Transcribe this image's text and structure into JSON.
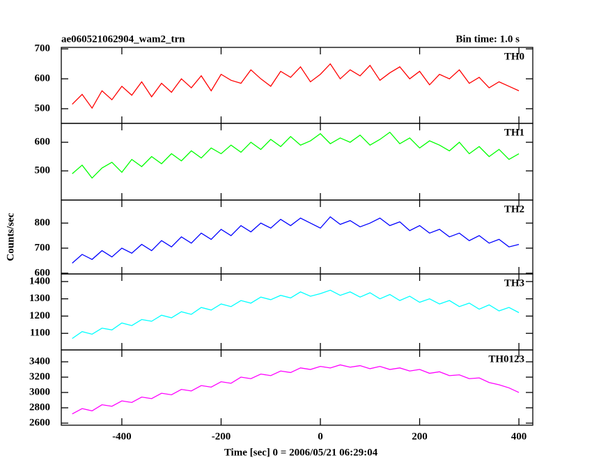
{
  "title": "ae060521062904_wam2_trn",
  "bin_time": "Bin time: 1.0 s",
  "ylabel": "Counts/sec",
  "xlabel": "Time [sec] 0 = 2006/05/21 06:29:04",
  "chart_data": [
    {
      "type": "line",
      "label": "TH0",
      "color": "#ff0000",
      "x": [
        -500,
        -480,
        -460,
        -440,
        -420,
        -400,
        -380,
        -360,
        -340,
        -320,
        -300,
        -280,
        -260,
        -240,
        -220,
        -200,
        -180,
        -160,
        -140,
        -120,
        -100,
        -80,
        -60,
        -40,
        -20,
        0,
        20,
        40,
        60,
        80,
        100,
        120,
        140,
        160,
        180,
        200,
        220,
        240,
        260,
        280,
        300,
        320,
        340,
        360,
        380,
        400
      ],
      "values": [
        515,
        548,
        502,
        560,
        530,
        575,
        545,
        590,
        540,
        585,
        555,
        600,
        570,
        610,
        560,
        615,
        595,
        585,
        630,
        600,
        575,
        625,
        605,
        640,
        590,
        615,
        650,
        600,
        630,
        610,
        645,
        595,
        620,
        640,
        600,
        625,
        580,
        615,
        600,
        630,
        585,
        605,
        570,
        590,
        575,
        560
      ],
      "xlim": [
        -522,
        428
      ],
      "xticks": [
        -400,
        -200,
        0,
        200,
        400
      ],
      "ylim": [
        451,
        705
      ],
      "yticks": [
        500,
        600,
        700
      ]
    },
    {
      "type": "line",
      "label": "TH1",
      "color": "#00ff00",
      "x": [
        -500,
        -480,
        -460,
        -440,
        -420,
        -400,
        -380,
        -360,
        -340,
        -320,
        -300,
        -280,
        -260,
        -240,
        -220,
        -200,
        -180,
        -160,
        -140,
        -120,
        -100,
        -80,
        -60,
        -40,
        -20,
        0,
        20,
        40,
        60,
        80,
        100,
        120,
        140,
        160,
        180,
        200,
        220,
        240,
        260,
        280,
        300,
        320,
        340,
        360,
        380,
        400
      ],
      "values": [
        490,
        520,
        475,
        510,
        530,
        495,
        540,
        515,
        550,
        525,
        560,
        535,
        570,
        545,
        580,
        560,
        590,
        565,
        600,
        575,
        610,
        585,
        620,
        590,
        605,
        630,
        595,
        615,
        600,
        625,
        590,
        610,
        635,
        595,
        615,
        580,
        605,
        590,
        570,
        600,
        560,
        585,
        550,
        575,
        540,
        560
      ],
      "xlim": [
        -522,
        428
      ],
      "xticks": [
        -400,
        -200,
        0,
        200,
        400
      ],
      "ylim": [
        398,
        666
      ],
      "yticks": [
        500,
        600
      ]
    },
    {
      "type": "line",
      "label": "TH2",
      "color": "#0000ff",
      "x": [
        -500,
        -480,
        -460,
        -440,
        -420,
        -400,
        -380,
        -360,
        -340,
        -320,
        -300,
        -280,
        -260,
        -240,
        -220,
        -200,
        -180,
        -160,
        -140,
        -120,
        -100,
        -80,
        -60,
        -40,
        -20,
        0,
        20,
        40,
        60,
        80,
        100,
        120,
        140,
        160,
        180,
        200,
        220,
        240,
        260,
        280,
        300,
        320,
        340,
        360,
        380,
        400
      ],
      "values": [
        640,
        675,
        655,
        690,
        665,
        700,
        680,
        715,
        690,
        730,
        705,
        745,
        720,
        760,
        735,
        775,
        750,
        790,
        765,
        800,
        780,
        815,
        790,
        820,
        800,
        780,
        825,
        795,
        810,
        785,
        800,
        820,
        790,
        805,
        770,
        790,
        760,
        775,
        745,
        760,
        730,
        750,
        720,
        735,
        705,
        715
      ],
      "xlim": [
        -522,
        428
      ],
      "xticks": [
        -400,
        -200,
        0,
        200,
        400
      ],
      "ylim": [
        597,
        892
      ],
      "yticks": [
        600,
        700,
        800
      ]
    },
    {
      "type": "line",
      "label": "TH3",
      "color": "#00ffff",
      "x": [
        -500,
        -480,
        -460,
        -440,
        -420,
        -400,
        -380,
        -360,
        -340,
        -320,
        -300,
        -280,
        -260,
        -240,
        -220,
        -200,
        -180,
        -160,
        -140,
        -120,
        -100,
        -80,
        -60,
        -40,
        -20,
        0,
        20,
        40,
        60,
        80,
        100,
        120,
        140,
        160,
        180,
        200,
        220,
        240,
        260,
        280,
        300,
        320,
        340,
        360,
        380,
        400
      ],
      "values": [
        1070,
        1110,
        1095,
        1130,
        1120,
        1160,
        1145,
        1180,
        1170,
        1205,
        1190,
        1225,
        1210,
        1250,
        1235,
        1270,
        1255,
        1290,
        1275,
        1310,
        1295,
        1320,
        1305,
        1340,
        1315,
        1330,
        1350,
        1320,
        1340,
        1310,
        1335,
        1300,
        1325,
        1290,
        1315,
        1280,
        1300,
        1270,
        1290,
        1255,
        1275,
        1240,
        1265,
        1230,
        1250,
        1220
      ],
      "xlim": [
        -522,
        428
      ],
      "xticks": [
        -400,
        -200,
        0,
        200,
        400
      ],
      "ylim": [
        1004,
        1444
      ],
      "yticks": [
        1100,
        1200,
        1300,
        1400
      ]
    },
    {
      "type": "line",
      "label": "TH0123",
      "color": "#ff00ff",
      "x": [
        -500,
        -480,
        -460,
        -440,
        -420,
        -400,
        -380,
        -360,
        -340,
        -320,
        -300,
        -280,
        -260,
        -240,
        -220,
        -200,
        -180,
        -160,
        -140,
        -120,
        -100,
        -80,
        -60,
        -40,
        -20,
        0,
        20,
        40,
        60,
        80,
        100,
        120,
        140,
        160,
        180,
        200,
        220,
        240,
        260,
        280,
        300,
        320,
        340,
        360,
        380,
        400
      ],
      "values": [
        2720,
        2790,
        2760,
        2840,
        2820,
        2890,
        2870,
        2940,
        2920,
        2990,
        2970,
        3040,
        3020,
        3090,
        3070,
        3140,
        3120,
        3200,
        3180,
        3240,
        3220,
        3280,
        3260,
        3320,
        3300,
        3340,
        3320,
        3360,
        3330,
        3350,
        3310,
        3340,
        3300,
        3320,
        3280,
        3300,
        3250,
        3270,
        3220,
        3230,
        3180,
        3190,
        3130,
        3100,
        3060,
        3000
      ],
      "xlim": [
        -522,
        428
      ],
      "xticks": [
        -400,
        -200,
        0,
        200,
        400
      ],
      "ylim": [
        2573,
        3555
      ],
      "yticks": [
        2600,
        2800,
        3000,
        3200,
        3400
      ]
    }
  ]
}
